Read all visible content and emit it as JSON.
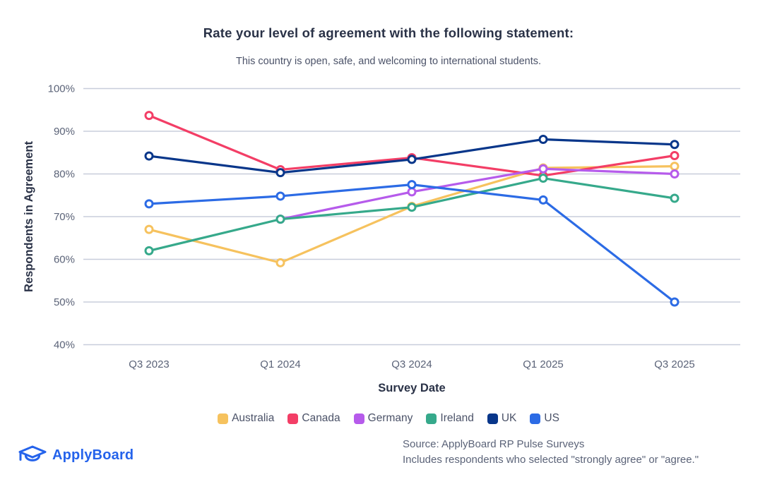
{
  "header": {
    "title": "Rate your level of agreement with the following statement:",
    "subtitle": "This country is open, safe, and welcoming to international students."
  },
  "chart_data": {
    "type": "line",
    "categories": [
      "Q3 2023",
      "Q1 2024",
      "Q3 2024",
      "Q1 2025",
      "Q3 2025"
    ],
    "series": [
      {
        "name": "Australia",
        "color": "#F6C25E",
        "values": [
          67,
          59.2,
          72.4,
          81.4,
          81.8
        ]
      },
      {
        "name": "Canada",
        "color": "#F33E66",
        "values": [
          93.7,
          81,
          83.8,
          79.6,
          84.3
        ]
      },
      {
        "name": "Germany",
        "color": "#B65BEB",
        "values": [
          null,
          69.4,
          75.8,
          81.2,
          80
        ]
      },
      {
        "name": "Ireland",
        "color": "#36A98B",
        "values": [
          62,
          69.4,
          72.2,
          79,
          74.3
        ]
      },
      {
        "name": "UK",
        "color": "#08368A",
        "values": [
          84.2,
          80.3,
          83.4,
          88.1,
          86.9
        ]
      },
      {
        "name": "US",
        "color": "#2C6BE5",
        "values": [
          73,
          74.8,
          77.5,
          73.9,
          50
        ]
      }
    ],
    "xlabel": "Survey Date",
    "ylabel": "Respondents in Agreement",
    "y_tick_values": [
      100,
      90,
      80,
      70,
      60,
      50,
      40
    ],
    "y_tick_labels": [
      "100%",
      "90%",
      "80%",
      "70%",
      "60%",
      "50%",
      "40%"
    ],
    "ylim": [
      40,
      100
    ],
    "grid": true,
    "legend_position": "bottom",
    "gridline_color": "#C8CDDB",
    "tick_label_color": "#5B6378",
    "axis_title_color": "#2A3247"
  },
  "footer": {
    "logo_text": "ApplyBoard",
    "source_line1": "Source: ApplyBoard RP Pulse Surveys",
    "source_line2": "Includes respondents who selected \"strongly agree\" or \"agree.\""
  }
}
